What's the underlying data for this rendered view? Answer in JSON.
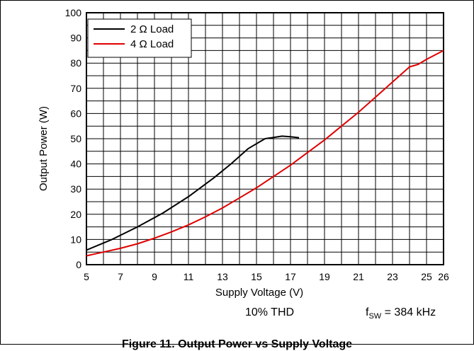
{
  "chart_data": {
    "type": "line",
    "title": "",
    "xlabel": "Supply Voltage (V)",
    "ylabel": "Output Power (W)",
    "xlim": [
      5,
      26
    ],
    "ylim": [
      0,
      100
    ],
    "x_ticks": [
      5,
      7,
      9,
      11,
      13,
      15,
      17,
      19,
      21,
      23,
      25,
      26
    ],
    "y_ticks": [
      0,
      10,
      20,
      30,
      40,
      50,
      60,
      70,
      80,
      90,
      100
    ],
    "x_tick_labels": [
      "5",
      "7",
      "9",
      "11",
      "13",
      "15",
      "17",
      "19",
      "21",
      "23",
      "25",
      "26"
    ],
    "y_tick_labels": [
      "0",
      "10",
      "20",
      "30",
      "40",
      "50",
      "60",
      "70",
      "80",
      "90",
      "100"
    ],
    "grid": true,
    "legend_position": "top-left",
    "series": [
      {
        "name": "2 Ω Load",
        "color": "#000000",
        "x": [
          5,
          6.5,
          8,
          9.5,
          11,
          12.5,
          13.5,
          14.5,
          15.5,
          16,
          16.5,
          17,
          17.5
        ],
        "y": [
          5.8,
          10,
          15,
          20.5,
          27,
          34.5,
          40,
          46,
          50,
          50.5,
          51,
          50.8,
          50.4
        ]
      },
      {
        "name": "4 Ω Load",
        "color": "#e00000",
        "x": [
          5,
          6,
          7,
          8,
          9,
          10,
          11,
          12,
          13,
          14,
          15,
          16,
          17,
          18,
          19,
          20,
          21,
          22,
          23,
          24,
          24.5,
          25,
          26
        ],
        "y": [
          3.5,
          5,
          6.5,
          8.3,
          10.5,
          13,
          15.8,
          19,
          22.5,
          26.5,
          30.5,
          35,
          39.5,
          44.5,
          49.5,
          55,
          60.5,
          66.5,
          72.5,
          78.5,
          79.5,
          81.5,
          85
        ]
      }
    ],
    "annotations": [
      "10% THD"
    ]
  },
  "notes": {
    "thd": "10% THD",
    "fsw_prefix": "f",
    "fsw_sub": "SW",
    "fsw_value": " = 384 kHz"
  },
  "caption": "Figure 11. Output Power vs Supply Voltage"
}
